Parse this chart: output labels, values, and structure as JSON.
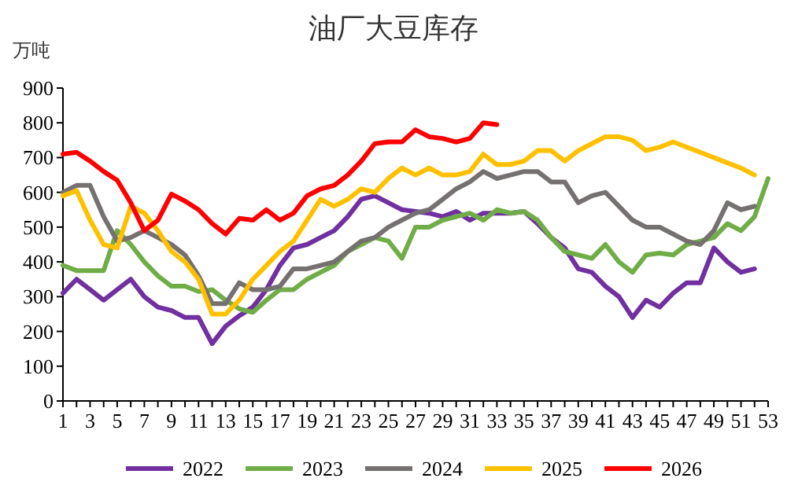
{
  "chart_data": {
    "type": "line",
    "title": "油厂大豆库存",
    "ylabel": "万吨",
    "x": [
      1,
      2,
      3,
      4,
      5,
      6,
      7,
      8,
      9,
      10,
      11,
      12,
      13,
      14,
      15,
      16,
      17,
      18,
      19,
      20,
      21,
      22,
      23,
      24,
      25,
      26,
      27,
      28,
      29,
      30,
      31,
      32,
      33,
      34,
      35,
      36,
      37,
      38,
      39,
      40,
      41,
      42,
      43,
      44,
      45,
      46,
      47,
      48,
      49,
      50,
      51,
      52,
      53
    ],
    "xlim": [
      1,
      53
    ],
    "xticks": [
      1,
      3,
      5,
      7,
      9,
      11,
      13,
      15,
      17,
      19,
      21,
      23,
      25,
      27,
      29,
      31,
      33,
      35,
      37,
      39,
      41,
      43,
      45,
      47,
      49,
      51,
      53
    ],
    "ylim": [
      0,
      900
    ],
    "yticks": [
      0,
      100,
      200,
      300,
      400,
      500,
      600,
      700,
      800,
      900
    ],
    "grid": false,
    "legend": "bottom",
    "marker": "none",
    "line_style": "solid",
    "series": [
      {
        "name": "2022",
        "color": "#7030a0",
        "values": [
          310,
          350,
          320,
          290,
          320,
          350,
          300,
          270,
          260,
          240,
          240,
          165,
          215,
          245,
          270,
          320,
          390,
          440,
          450,
          470,
          490,
          530,
          580,
          590,
          570,
          550,
          545,
          540,
          530,
          545,
          520,
          540,
          540,
          540,
          545,
          510,
          470,
          440,
          380,
          370,
          330,
          300,
          240,
          290,
          270,
          310,
          340,
          340,
          440,
          400,
          370,
          380,
          null
        ]
      },
      {
        "name": "2023",
        "color": "#70ad47",
        "values": [
          390,
          375,
          375,
          375,
          490,
          450,
          400,
          360,
          330,
          330,
          315,
          320,
          290,
          265,
          255,
          290,
          320,
          320,
          350,
          370,
          390,
          430,
          450,
          470,
          460,
          410,
          500,
          500,
          520,
          530,
          540,
          520,
          550,
          540,
          545,
          520,
          470,
          430,
          420,
          410,
          450,
          400,
          370,
          420,
          425,
          420,
          450,
          460,
          470,
          510,
          490,
          530,
          640
        ]
      },
      {
        "name": "2024",
        "color": "#767171",
        "values": [
          600,
          620,
          620,
          530,
          460,
          470,
          490,
          470,
          450,
          420,
          360,
          280,
          280,
          340,
          320,
          320,
          330,
          380,
          380,
          390,
          400,
          430,
          460,
          470,
          500,
          520,
          540,
          550,
          580,
          610,
          630,
          660,
          640,
          650,
          660,
          660,
          630,
          630,
          570,
          590,
          600,
          560,
          520,
          500,
          500,
          480,
          460,
          450,
          490,
          570,
          550,
          560,
          null
        ]
      },
      {
        "name": "2025",
        "color": "#ffc000",
        "values": [
          590,
          605,
          520,
          450,
          440,
          560,
          540,
          490,
          430,
          400,
          350,
          250,
          250,
          290,
          350,
          390,
          430,
          460,
          520,
          580,
          560,
          580,
          610,
          600,
          640,
          670,
          650,
          670,
          650,
          650,
          660,
          710,
          680,
          680,
          690,
          720,
          720,
          690,
          720,
          740,
          760,
          760,
          750,
          720,
          730,
          745,
          730,
          715,
          700,
          685,
          670,
          650,
          null
        ]
      },
      {
        "name": "2026",
        "color": "#ff0000",
        "values": [
          710,
          715,
          690,
          660,
          635,
          570,
          490,
          520,
          595,
          575,
          550,
          510,
          480,
          525,
          520,
          550,
          520,
          540,
          590,
          610,
          620,
          650,
          690,
          740,
          745,
          745,
          780,
          760,
          755,
          745,
          755,
          800,
          795,
          null,
          null,
          null,
          null,
          null,
          null,
          null,
          null,
          null,
          null,
          null,
          null,
          null,
          null,
          null,
          null,
          null,
          null,
          null,
          null
        ]
      }
    ]
  }
}
